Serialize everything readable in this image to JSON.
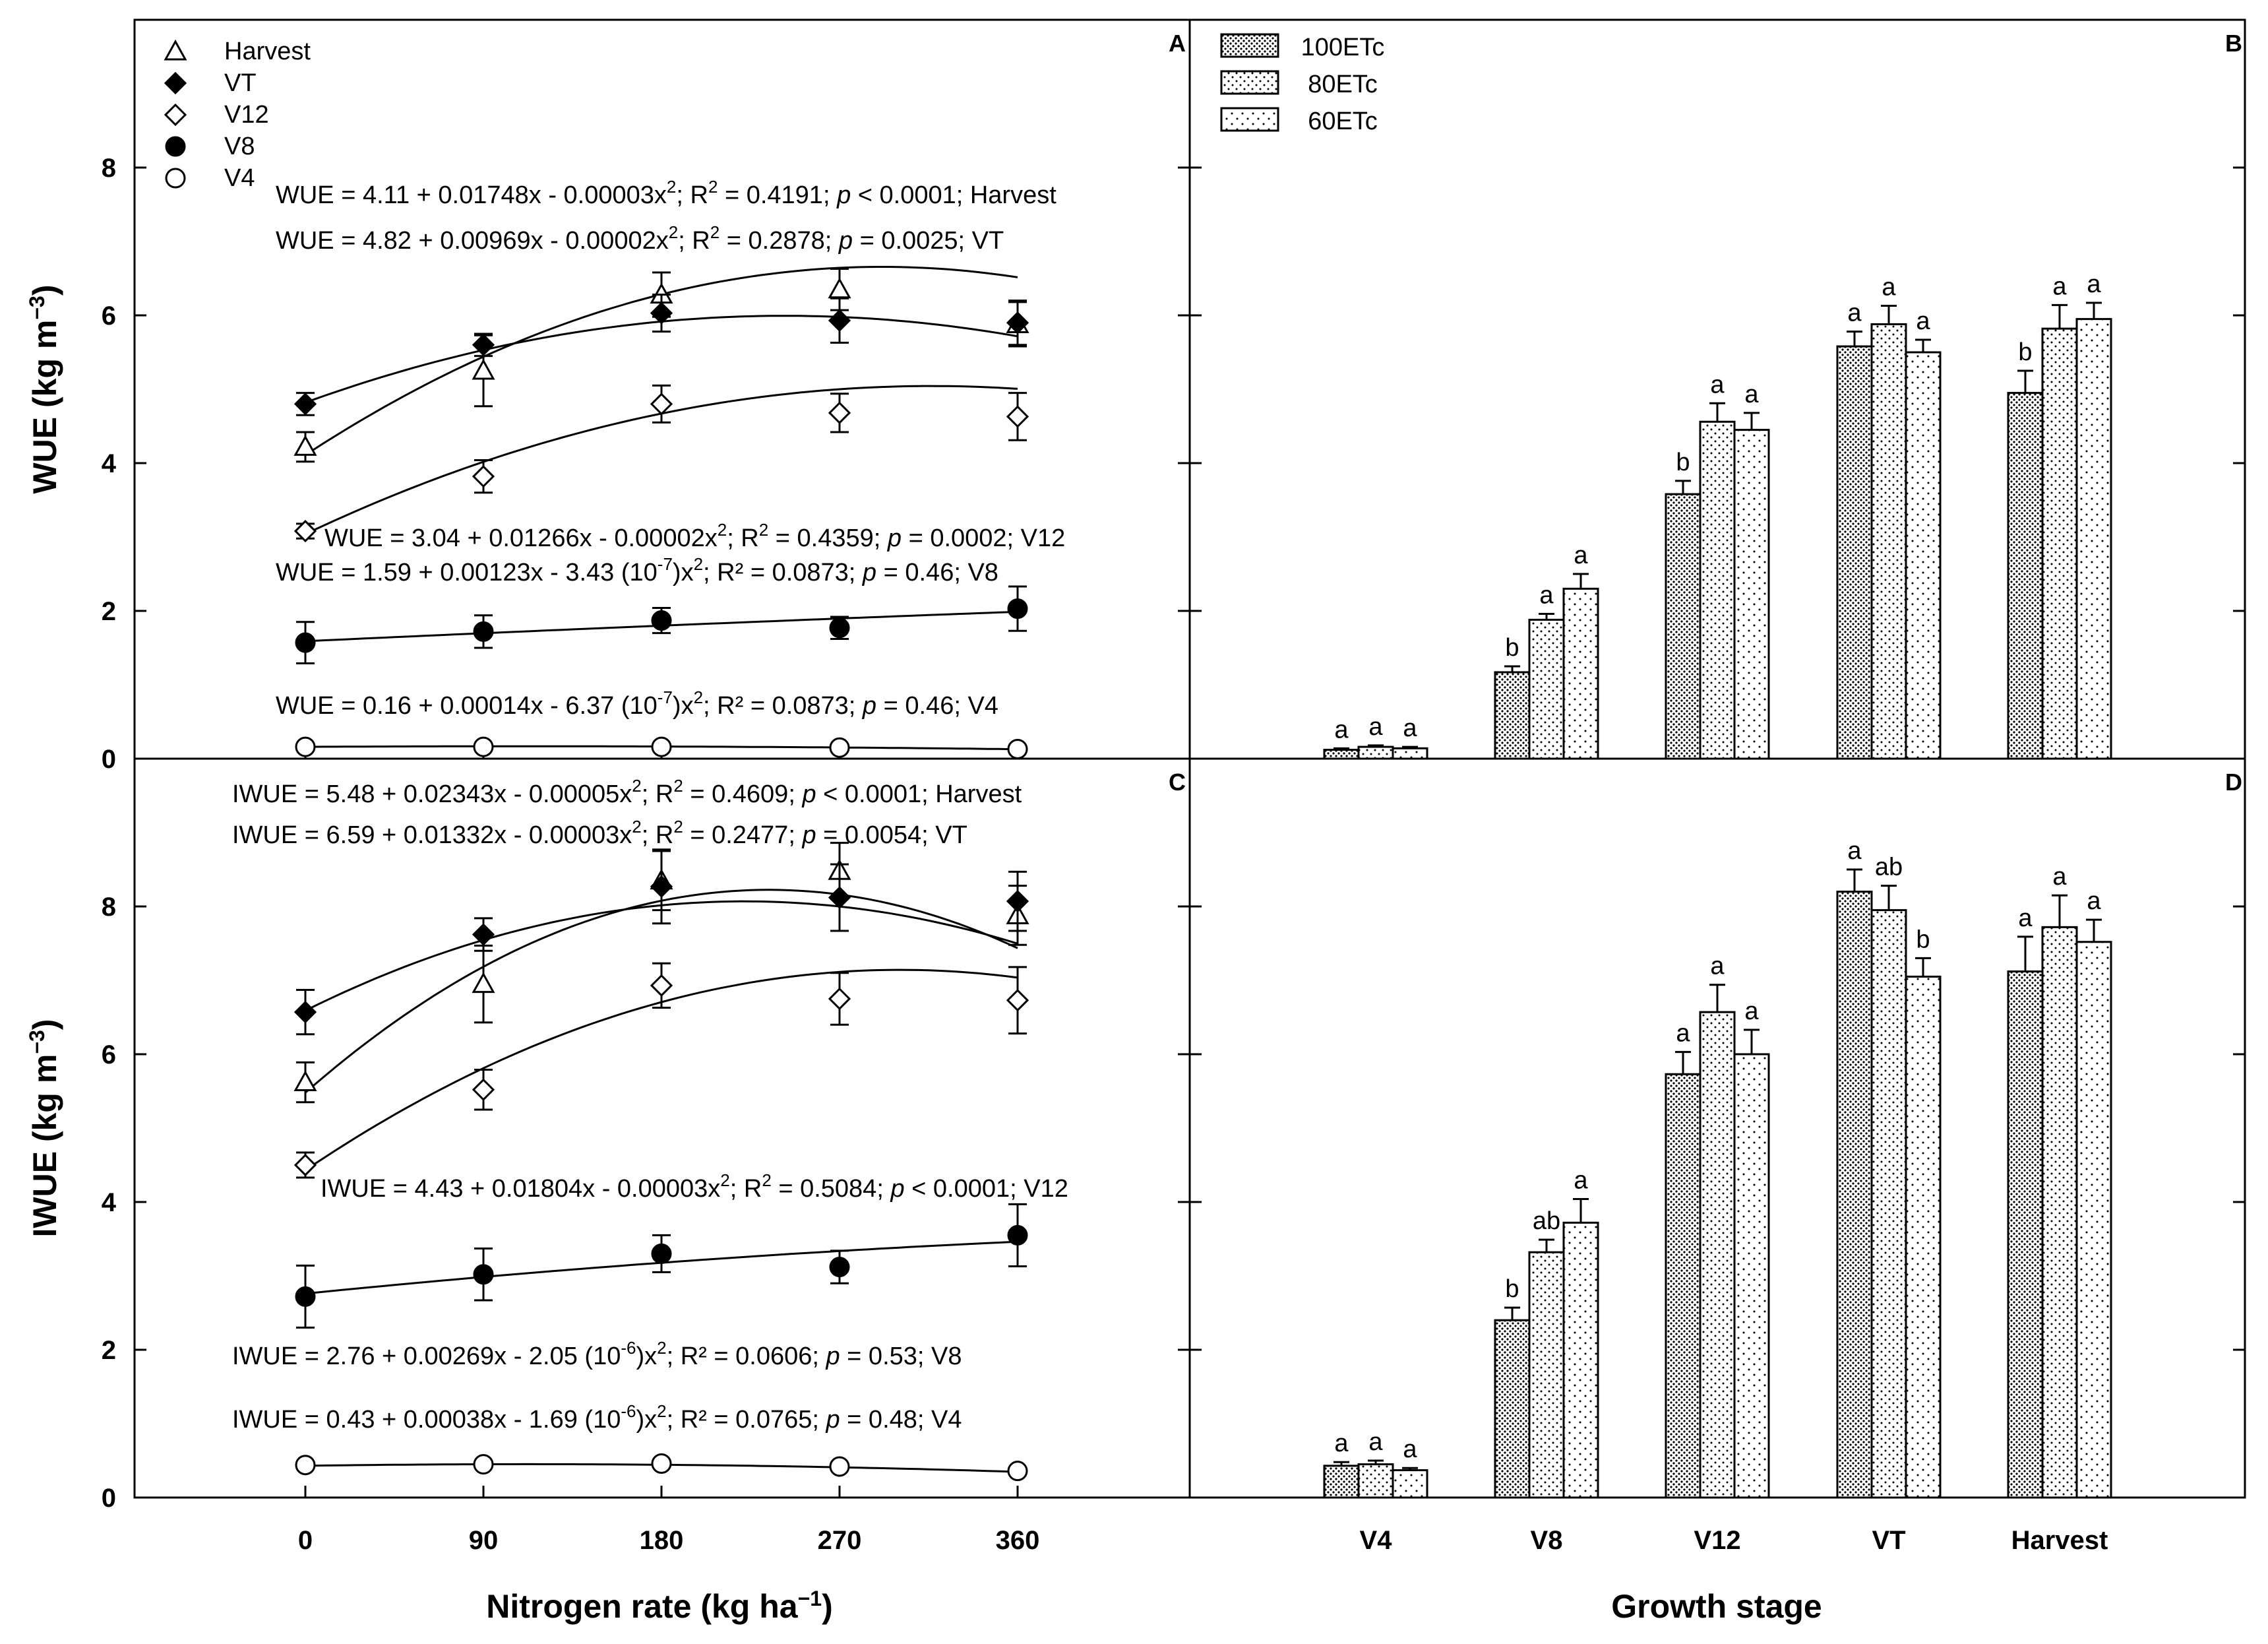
{
  "colors": {
    "ink": "#000000",
    "background": "#ffffff",
    "bar_fill": "#ffffff"
  },
  "chart_data": [
    {
      "panel": "A",
      "type": "scatter",
      "ylabel": "WUE (kg m⁻³)",
      "xlabel": "",
      "x": [
        0,
        90,
        180,
        270,
        360
      ],
      "ylim": [
        0,
        10
      ],
      "yticks": [
        0,
        2,
        4,
        6,
        8
      ],
      "legend": [
        {
          "name": "Harvest",
          "marker": "open-triangle"
        },
        {
          "name": "VT",
          "marker": "filled-diamond"
        },
        {
          "name": "V12",
          "marker": "open-diamond"
        },
        {
          "name": "V8",
          "marker": "filled-circle"
        },
        {
          "name": "V4",
          "marker": "open-circle"
        }
      ],
      "series": [
        {
          "name": "Harvest",
          "marker": "open-triangle",
          "values": [
            4.22,
            5.25,
            6.28,
            6.35,
            5.88
          ],
          "errors": [
            0.2,
            0.48,
            0.3,
            0.28,
            0.3
          ],
          "fit": [
            4.11,
            0.01748,
            -3e-05
          ]
        },
        {
          "name": "VT",
          "marker": "filled-diamond",
          "values": [
            4.8,
            5.6,
            6.03,
            5.93,
            5.9
          ],
          "errors": [
            0.15,
            0.15,
            0.25,
            0.3,
            0.3
          ],
          "fit": [
            4.82,
            0.00969,
            -2e-05
          ]
        },
        {
          "name": "V12",
          "marker": "open-diamond",
          "values": [
            3.08,
            3.82,
            4.8,
            4.68,
            4.63
          ],
          "errors": [
            0.1,
            0.22,
            0.25,
            0.26,
            0.32
          ],
          "fit": [
            3.04,
            0.01266,
            -2e-05
          ]
        },
        {
          "name": "V8",
          "marker": "filled-circle",
          "values": [
            1.57,
            1.72,
            1.87,
            1.77,
            2.03
          ],
          "errors": [
            0.28,
            0.22,
            0.17,
            0.15,
            0.3
          ],
          "fit": [
            1.59,
            0.00123,
            -3.43e-07
          ]
        },
        {
          "name": "V4",
          "marker": "open-circle",
          "values": [
            0.16,
            0.16,
            0.16,
            0.15,
            0.13
          ],
          "errors": [
            0.02,
            0.02,
            0.02,
            0.02,
            0.02
          ],
          "fit": [
            0.16,
            0.00014,
            -6.37e-07
          ]
        }
      ],
      "equations": [
        {
          "prefix": "WUE = 4.11 + 0.01748x - 0.00003x",
          "sup": "2",
          "mid": "; R",
          "sup2": "2",
          "stat": " = 0.4191; ",
          "p": "p",
          "rest": " < 0.0001; Harvest"
        },
        {
          "prefix": "WUE = 4.82 + 0.00969x - 0.00002x",
          "sup": "2",
          "mid": "; R",
          "sup2": "2",
          "stat": " = 0.2878; ",
          "p": "p",
          "rest": " = 0.0025; VT"
        },
        {
          "prefix": "WUE = 3.04 + 0.01266x - 0.00002x",
          "sup": "2",
          "mid": "; R",
          "sup2": "2",
          "stat": " = 0.4359; ",
          "p": "p",
          "rest": " = 0.0002; V12"
        },
        {
          "prefix": "WUE = 1.59 + 0.00123x - 3.43 (10",
          "sup": "-7",
          "mid": ")x",
          "sup2": "2",
          "stat": "; R² = 0.0873; ",
          "p": "p",
          "rest": " = 0.46; V8"
        },
        {
          "prefix": "WUE = 0.16 + 0.00014x - 6.37 (10",
          "sup": "-7",
          "mid": ")x",
          "sup2": "2",
          "stat": "; R² = 0.0873; ",
          "p": "p",
          "rest": " = 0.46; V4"
        }
      ]
    },
    {
      "panel": "B",
      "type": "bar",
      "categories": [
        "V4",
        "V8",
        "V12",
        "VT",
        "Harvest"
      ],
      "ylim": [
        0,
        10
      ],
      "legend": [
        "100ETc",
        "80ETc",
        "60ETc"
      ],
      "series": [
        {
          "name": "100ETc",
          "values": [
            0.12,
            1.17,
            3.58,
            5.58,
            4.95
          ],
          "errors": [
            0.02,
            0.08,
            0.18,
            0.2,
            0.3
          ],
          "letters": [
            "a",
            "b",
            "b",
            "a",
            "b"
          ]
        },
        {
          "name": "80ETc",
          "values": [
            0.16,
            1.88,
            4.56,
            5.88,
            5.82
          ],
          "errors": [
            0.02,
            0.08,
            0.25,
            0.25,
            0.32
          ],
          "letters": [
            "a",
            "a",
            "a",
            "a",
            "a"
          ]
        },
        {
          "name": "60ETc",
          "values": [
            0.14,
            2.3,
            4.45,
            5.5,
            5.95
          ],
          "errors": [
            0.02,
            0.2,
            0.23,
            0.17,
            0.22
          ],
          "letters": [
            "a",
            "a",
            "a",
            "a",
            "a"
          ]
        }
      ]
    },
    {
      "panel": "C",
      "type": "scatter",
      "ylabel": "IWUE (kg m⁻³)",
      "xlabel": "Nitrogen rate (kg ha⁻¹)",
      "x": [
        0,
        90,
        180,
        270,
        360
      ],
      "xticks": [
        "0",
        "90",
        "180",
        "270",
        "360"
      ],
      "ylim": [
        0,
        10
      ],
      "yticks": [
        0,
        2,
        4,
        6,
        8
      ],
      "series": [
        {
          "name": "Harvest",
          "marker": "open-triangle",
          "values": [
            5.62,
            6.95,
            8.35,
            8.48,
            7.88
          ],
          "errors": [
            0.27,
            0.52,
            0.4,
            0.38,
            0.4
          ],
          "fit": [
            5.48,
            0.02343,
            -5e-05
          ]
        },
        {
          "name": "VT",
          "marker": "filled-diamond",
          "values": [
            6.57,
            7.62,
            8.27,
            8.12,
            8.07
          ],
          "errors": [
            0.3,
            0.22,
            0.5,
            0.45,
            0.4
          ],
          "fit": [
            6.59,
            0.01332,
            -3e-05
          ]
        },
        {
          "name": "V12",
          "marker": "open-diamond",
          "values": [
            4.5,
            5.52,
            6.93,
            6.75,
            6.73
          ],
          "errors": [
            0.17,
            0.27,
            0.3,
            0.35,
            0.45
          ],
          "fit": [
            4.43,
            0.01804,
            -3e-05
          ]
        },
        {
          "name": "V8",
          "marker": "filled-circle",
          "values": [
            2.72,
            3.02,
            3.3,
            3.12,
            3.55
          ],
          "errors": [
            0.42,
            0.35,
            0.25,
            0.22,
            0.42
          ],
          "fit": [
            2.76,
            0.00269,
            -2.05e-06
          ]
        },
        {
          "name": "V4",
          "marker": "open-circle",
          "values": [
            0.44,
            0.45,
            0.46,
            0.42,
            0.36
          ],
          "errors": [
            0.02,
            0.02,
            0.02,
            0.02,
            0.02
          ],
          "fit": [
            0.43,
            0.00038,
            -1.69e-06
          ]
        }
      ],
      "equations": [
        {
          "prefix": "IWUE = 5.48 + 0.02343x - 0.00005x",
          "sup": "2",
          "mid": "; R",
          "sup2": "2",
          "stat": " = 0.4609; ",
          "p": "p",
          "rest": " < 0.0001; Harvest"
        },
        {
          "prefix": "IWUE = 6.59 + 0.01332x - 0.00003x",
          "sup": "2",
          "mid": "; R",
          "sup2": "2",
          "stat": " = 0.2477; ",
          "p": "p",
          "rest": " = 0.0054; VT"
        },
        {
          "prefix": "IWUE = 4.43 + 0.01804x - 0.00003x",
          "sup": "2",
          "mid": "; R",
          "sup2": "2",
          "stat": " = 0.5084; ",
          "p": "p",
          "rest": " < 0.0001; V12"
        },
        {
          "prefix": "IWUE = 2.76 + 0.00269x - 2.05 (10",
          "sup": "-6",
          "mid": ")x",
          "sup2": "2",
          "stat": "; R² = 0.0606; ",
          "p": "p",
          "rest": " = 0.53; V8"
        },
        {
          "prefix": "IWUE = 0.43 + 0.00038x - 1.69 (10",
          "sup": "-6",
          "mid": ")x",
          "sup2": "2",
          "stat": "; R² = 0.0765; ",
          "p": "p",
          "rest": " = 0.48; V4"
        }
      ]
    },
    {
      "panel": "D",
      "type": "bar",
      "categories": [
        "V4",
        "V8",
        "V12",
        "VT",
        "Harvest"
      ],
      "xlabel": "Growth stage",
      "ylim": [
        0,
        10
      ],
      "series": [
        {
          "name": "100ETc",
          "values": [
            0.43,
            2.4,
            5.73,
            8.2,
            7.12
          ],
          "errors": [
            0.05,
            0.17,
            0.3,
            0.3,
            0.47
          ],
          "letters": [
            "a",
            "b",
            "a",
            "a",
            "a"
          ]
        },
        {
          "name": "80ETc",
          "values": [
            0.45,
            3.32,
            6.57,
            7.95,
            7.72
          ],
          "errors": [
            0.05,
            0.17,
            0.37,
            0.33,
            0.43
          ],
          "letters": [
            "a",
            "ab",
            "a",
            "ab",
            "a"
          ]
        },
        {
          "name": "60ETc",
          "values": [
            0.37,
            3.72,
            6.0,
            7.05,
            7.52
          ],
          "errors": [
            0.03,
            0.32,
            0.33,
            0.25,
            0.3
          ],
          "letters": [
            "a",
            "a",
            "a",
            "b",
            "a"
          ]
        }
      ]
    }
  ]
}
